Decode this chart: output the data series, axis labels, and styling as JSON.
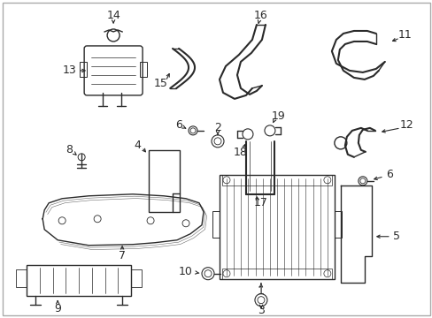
{
  "background_color": "#ffffff",
  "border_color": "#aaaaaa",
  "line_color": "#2a2a2a",
  "fig_width": 4.89,
  "fig_height": 3.6,
  "dpi": 100
}
